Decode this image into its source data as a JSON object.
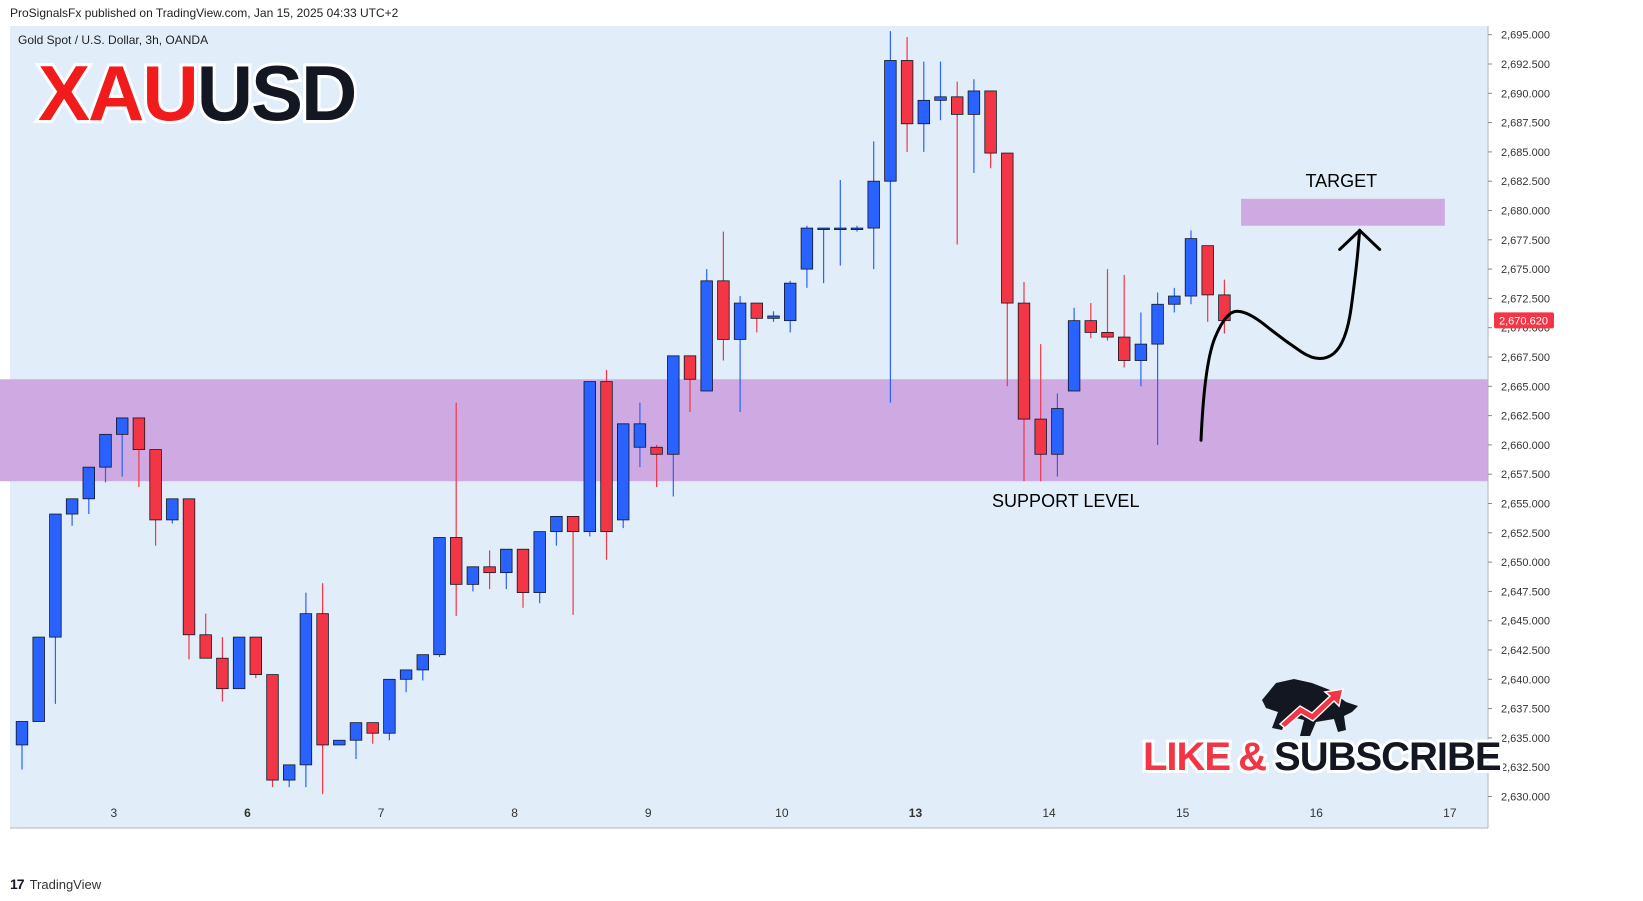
{
  "header": {
    "published_line": "ProSignalsFx published on TradingView.com, Jan 15, 2025 04:33 UTC+2"
  },
  "footer": {
    "brand": "TradingView",
    "logo_glyph": "17"
  },
  "colors": {
    "background": "#e1eefa",
    "bull": "#2962ff",
    "bear": "#f23645",
    "zone": "#cfa9e2",
    "price_tag": "#f23645",
    "ticker_red": "#f21b1b",
    "ticker_black": "#131722"
  },
  "chart_data": {
    "type": "candlestick",
    "symbol_line": "Gold Spot / U.S. Dollar, 3h, OANDA",
    "ticker_part1": "XAU",
    "ticker_part2": "USD",
    "ylim": [
      2629.5,
      2695.5
    ],
    "y_ticks": [
      "2,630.000",
      "2,632.500",
      "2,635.000",
      "2,637.500",
      "2,640.000",
      "2,642.500",
      "2,645.000",
      "2,647.500",
      "2,650.000",
      "2,652.500",
      "2,655.000",
      "2,657.500",
      "2,660.000",
      "2,662.500",
      "2,665.000",
      "2,667.500",
      "2,670.000",
      "2,672.500",
      "2,675.000",
      "2,677.500",
      "2,680.000",
      "2,682.500",
      "2,685.000",
      "2,687.500",
      "2,690.000",
      "2,692.500",
      "2,695.000"
    ],
    "x_ticks": [
      {
        "label": "3",
        "bar": 5.5,
        "bold": false
      },
      {
        "label": "6",
        "bar": 13.5,
        "bold": true
      },
      {
        "label": "7",
        "bar": 21.5,
        "bold": false
      },
      {
        "label": "8",
        "bar": 29.5,
        "bold": false
      },
      {
        "label": "9",
        "bar": 37.5,
        "bold": false
      },
      {
        "label": "10",
        "bar": 45.5,
        "bold": false
      },
      {
        "label": "13",
        "bar": 53.5,
        "bold": true
      },
      {
        "label": "14",
        "bar": 61.5,
        "bold": false
      },
      {
        "label": "15",
        "bar": 69.5,
        "bold": false
      },
      {
        "label": "16",
        "bar": 77.5,
        "bold": false
      },
      {
        "label": "17",
        "bar": 85.5,
        "bold": false
      }
    ],
    "last_price": "2,670.620",
    "candles": [
      [
        2634.4,
        2636.4,
        2632.3,
        2636.4
      ],
      [
        2636.4,
        2643.6,
        2636.4,
        2643.6
      ],
      [
        2643.6,
        2654.1,
        2637.9,
        2654.1
      ],
      [
        2654.1,
        2655.4,
        2653.1,
        2655.4
      ],
      [
        2655.4,
        2658.1,
        2654.1,
        2658.1
      ],
      [
        2658.1,
        2660.9,
        2656.8,
        2660.9
      ],
      [
        2660.9,
        2662.3,
        2657.3,
        2662.3
      ],
      [
        2662.3,
        2662.3,
        2656.4,
        2659.6
      ],
      [
        2659.6,
        2659.6,
        2651.4,
        2653.6
      ],
      [
        2653.6,
        2655.4,
        2653.3,
        2655.4
      ],
      [
        2655.4,
        2655.4,
        2641.7,
        2643.8
      ],
      [
        2643.8,
        2645.6,
        2641.8,
        2641.8
      ],
      [
        2641.8,
        2643.6,
        2638.1,
        2639.2
      ],
      [
        2639.2,
        2643.6,
        2639.2,
        2643.6
      ],
      [
        2643.6,
        2643.6,
        2640.1,
        2640.4
      ],
      [
        2640.4,
        2640.4,
        2630.8,
        2631.4
      ],
      [
        2631.4,
        2632.7,
        2630.8,
        2632.7
      ],
      [
        2632.7,
        2647.4,
        2630.8,
        2645.6
      ],
      [
        2645.6,
        2648.2,
        2630.2,
        2634.4
      ],
      [
        2634.4,
        2634.8,
        2634.4,
        2634.8
      ],
      [
        2634.8,
        2636.3,
        2633.2,
        2636.3
      ],
      [
        2636.3,
        2636.3,
        2634.5,
        2635.4
      ],
      [
        2635.4,
        2640.0,
        2634.8,
        2640.0
      ],
      [
        2640.0,
        2640.8,
        2638.9,
        2640.8
      ],
      [
        2640.8,
        2642.1,
        2639.9,
        2642.1
      ],
      [
        2642.1,
        2652.1,
        2641.9,
        2652.1
      ],
      [
        2652.1,
        2663.6,
        2645.4,
        2648.1
      ],
      [
        2648.1,
        2649.6,
        2647.5,
        2649.6
      ],
      [
        2649.6,
        2651.0,
        2647.7,
        2649.1
      ],
      [
        2649.1,
        2651.1,
        2647.7,
        2651.1
      ],
      [
        2651.1,
        2651.1,
        2646.1,
        2647.4
      ],
      [
        2647.4,
        2652.6,
        2646.5,
        2652.6
      ],
      [
        2652.6,
        2653.9,
        2651.4,
        2653.9
      ],
      [
        2653.9,
        2653.9,
        2645.5,
        2652.6
      ],
      [
        2652.6,
        2665.4,
        2652.2,
        2665.4
      ],
      [
        2665.4,
        2666.4,
        2650.2,
        2652.6
      ],
      [
        2653.6,
        2661.8,
        2652.9,
        2661.8
      ],
      [
        2659.8,
        2663.6,
        2658.1,
        2661.8
      ],
      [
        2659.8,
        2660.0,
        2656.4,
        2659.2
      ],
      [
        2659.2,
        2667.6,
        2655.6,
        2667.6
      ],
      [
        2667.6,
        2667.6,
        2662.8,
        2665.6
      ],
      [
        2664.6,
        2675.0,
        2664.6,
        2674.0
      ],
      [
        2674.0,
        2678.2,
        2667.2,
        2669.0
      ],
      [
        2669.0,
        2672.7,
        2662.8,
        2672.1
      ],
      [
        2672.1,
        2672.1,
        2669.6,
        2670.8
      ],
      [
        2670.8,
        2671.4,
        2670.5,
        2671.0
      ],
      [
        2670.6,
        2674.0,
        2669.6,
        2673.8
      ],
      [
        2675.0,
        2678.7,
        2673.4,
        2678.5
      ],
      [
        2678.5,
        2678.5,
        2673.8,
        2678.5
      ],
      [
        2678.5,
        2682.6,
        2675.3,
        2678.5
      ],
      [
        2678.5,
        2678.7,
        2678.2,
        2678.5
      ],
      [
        2678.5,
        2685.9,
        2675.0,
        2682.5
      ],
      [
        2682.5,
        2695.3,
        2663.6,
        2692.8
      ],
      [
        2692.8,
        2694.8,
        2685.0,
        2687.4
      ],
      [
        2687.4,
        2692.7,
        2685.0,
        2689.4
      ],
      [
        2689.4,
        2692.7,
        2687.7,
        2689.7
      ],
      [
        2689.7,
        2691.0,
        2677.1,
        2688.2
      ],
      [
        2688.2,
        2691.2,
        2683.2,
        2690.2
      ],
      [
        2690.2,
        2690.2,
        2683.6,
        2684.9
      ],
      [
        2684.9,
        2684.9,
        2665.0,
        2672.1
      ],
      [
        2672.1,
        2673.9,
        2656.9,
        2662.2
      ],
      [
        2662.2,
        2668.6,
        2656.9,
        2659.2
      ],
      [
        2659.2,
        2664.4,
        2657.3,
        2663.1
      ],
      [
        2664.6,
        2671.7,
        2664.6,
        2670.6
      ],
      [
        2670.6,
        2672.1,
        2669.1,
        2669.6
      ],
      [
        2669.6,
        2675.0,
        2668.9,
        2669.2
      ],
      [
        2669.2,
        2674.5,
        2666.6,
        2667.2
      ],
      [
        2667.2,
        2671.3,
        2665.0,
        2668.6
      ],
      [
        2668.6,
        2673.0,
        2660.0,
        2672.0
      ],
      [
        2672.0,
        2673.4,
        2671.3,
        2672.7
      ],
      [
        2672.7,
        2678.3,
        2672.0,
        2677.6
      ],
      [
        2677.0,
        2677.0,
        2670.5,
        2672.8
      ],
      [
        2672.8,
        2674.1,
        2669.5,
        2670.6
      ]
    ],
    "zones": [
      {
        "label": "SUPPORT LEVEL",
        "low": 2656.9,
        "high": 2665.6,
        "start_bar": -1.9,
        "end_bar": 89.5,
        "label_bar": 62.5,
        "label_price": 2655.2
      },
      {
        "label": "TARGET",
        "low": 2678.7,
        "high": 2681.0,
        "start_bar": 73.0,
        "end_bar": 85.2,
        "label_bar": 79.0,
        "label_price": 2682.5
      }
    ],
    "projection_path": [
      [
        70.6,
        2660.4
      ],
      [
        70.8,
        2667.0
      ],
      [
        72.1,
        2671.4
      ],
      [
        73.4,
        2671.4
      ],
      [
        75.5,
        2669.0
      ],
      [
        77.7,
        2666.9
      ],
      [
        79.3,
        2668.6
      ],
      [
        79.9,
        2675.0
      ],
      [
        80.1,
        2678.3
      ]
    ]
  },
  "promo": {
    "cta_part1": "LIKE",
    "cta_part2": "&",
    "cta_part3": "SUBSCRIBE",
    "logo_icon": "bull-logo"
  }
}
